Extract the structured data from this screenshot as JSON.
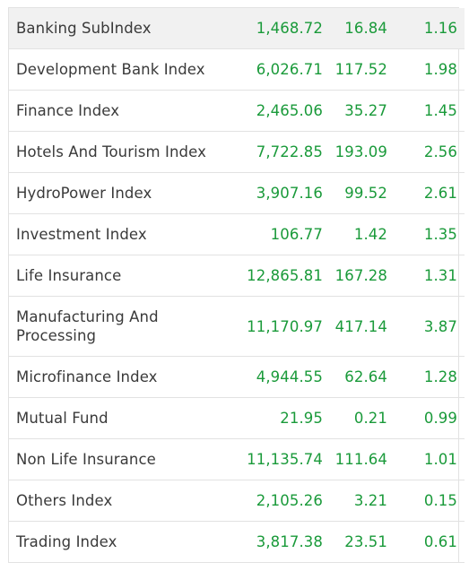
{
  "colors": {
    "positive": "#1a9a3a",
    "name_text": "#3a3a3a",
    "highlight_row": "#f1f1f1"
  },
  "rows": [
    {
      "name": "Banking SubIndex",
      "value": "1,468.72",
      "change": "16.84",
      "percent": "1.16"
    },
    {
      "name": "Development Bank Index",
      "value": "6,026.71",
      "change": "117.52",
      "percent": "1.98"
    },
    {
      "name": "Finance Index",
      "value": "2,465.06",
      "change": "35.27",
      "percent": "1.45"
    },
    {
      "name": "Hotels And Tourism Index",
      "value": "7,722.85",
      "change": "193.09",
      "percent": "2.56"
    },
    {
      "name": "HydroPower Index",
      "value": "3,907.16",
      "change": "99.52",
      "percent": "2.61"
    },
    {
      "name": "Investment Index",
      "value": "106.77",
      "change": "1.42",
      "percent": "1.35"
    },
    {
      "name": "Life Insurance",
      "value": "12,865.81",
      "change": "167.28",
      "percent": "1.31"
    },
    {
      "name": "Manufacturing And Processing",
      "value": "11,170.97",
      "change": "417.14",
      "percent": "3.87"
    },
    {
      "name": "Microfinance Index",
      "value": "4,944.55",
      "change": "62.64",
      "percent": "1.28"
    },
    {
      "name": "Mutual Fund",
      "value": "21.95",
      "change": "0.21",
      "percent": "0.99"
    },
    {
      "name": "Non Life Insurance",
      "value": "11,135.74",
      "change": "111.64",
      "percent": "1.01"
    },
    {
      "name": "Others Index",
      "value": "2,105.26",
      "change": "3.21",
      "percent": "0.15"
    },
    {
      "name": "Trading Index",
      "value": "3,817.38",
      "change": "23.51",
      "percent": "0.61"
    }
  ]
}
